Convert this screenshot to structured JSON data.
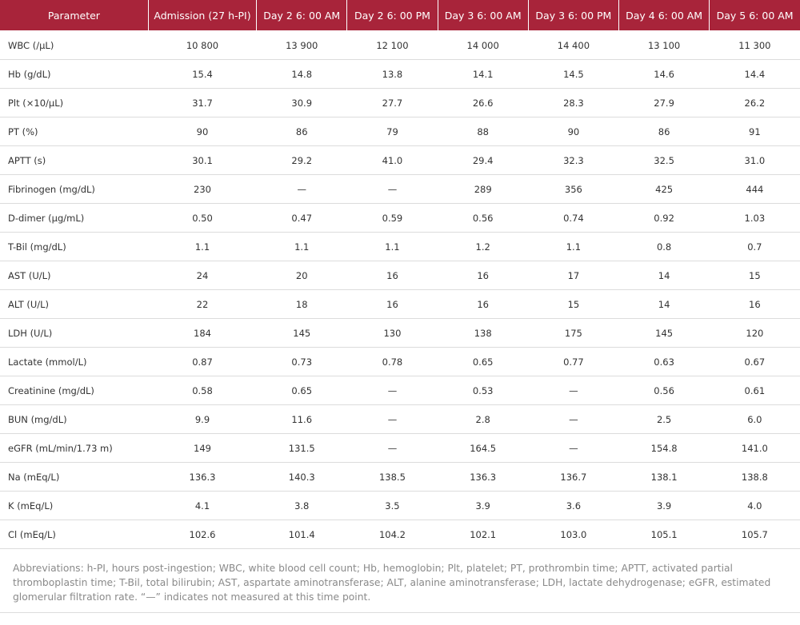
{
  "table": {
    "headers": [
      "Parameter",
      "Admission (27 h-PI)",
      "Day 2 6: 00 AM",
      "Day 2 6: 00 PM",
      "Day 3 6: 00 AM",
      "Day 3 6: 00 PM",
      "Day 4 6: 00 AM",
      "Day 5 6: 00 AM"
    ],
    "rows": [
      [
        "WBC (/µL)",
        "10 800",
        "13 900",
        "12 100",
        "14 000",
        "14 400",
        "13 100",
        "11 300"
      ],
      [
        "Hb (g/dL)",
        "15.4",
        "14.8",
        "13.8",
        "14.1",
        "14.5",
        "14.6",
        "14.4"
      ],
      [
        "Plt (×10/µL)",
        "31.7",
        "30.9",
        "27.7",
        "26.6",
        "28.3",
        "27.9",
        "26.2"
      ],
      [
        "PT (%)",
        "90",
        "86",
        "79",
        "88",
        "90",
        "86",
        "91"
      ],
      [
        "APTT (s)",
        "30.1",
        "29.2",
        "41.0",
        "29.4",
        "32.3",
        "32.5",
        "31.0"
      ],
      [
        "Fibrinogen (mg/dL)",
        "230",
        "—",
        "—",
        "289",
        "356",
        "425",
        "444"
      ],
      [
        "D-dimer (µg/mL)",
        "0.50",
        "0.47",
        "0.59",
        "0.56",
        "0.74",
        "0.92",
        "1.03"
      ],
      [
        "T-Bil (mg/dL)",
        "1.1",
        "1.1",
        "1.1",
        "1.2",
        "1.1",
        "0.8",
        "0.7"
      ],
      [
        "AST (U/L)",
        "24",
        "20",
        "16",
        "16",
        "17",
        "14",
        "15"
      ],
      [
        "ALT (U/L)",
        "22",
        "18",
        "16",
        "16",
        "15",
        "14",
        "16"
      ],
      [
        "LDH (U/L)",
        "184",
        "145",
        "130",
        "138",
        "175",
        "145",
        "120"
      ],
      [
        "Lactate (mmol/L)",
        "0.87",
        "0.73",
        "0.78",
        "0.65",
        "0.77",
        "0.63",
        "0.67"
      ],
      [
        "Creatinine (mg/dL)",
        "0.58",
        "0.65",
        "—",
        "0.53",
        "—",
        "0.56",
        "0.61"
      ],
      [
        "BUN (mg/dL)",
        "9.9",
        "11.6",
        "—",
        "2.8",
        "—",
        "2.5",
        "6.0"
      ],
      [
        "eGFR (mL/min/1.73 m)",
        "149",
        "131.5",
        "—",
        "164.5",
        "—",
        "154.8",
        "141.0"
      ],
      [
        "Na (mEq/L)",
        "136.3",
        "140.3",
        "138.5",
        "136.3",
        "136.7",
        "138.1",
        "138.8"
      ],
      [
        "K (mEq/L)",
        "4.1",
        "3.8",
        "3.5",
        "3.9",
        "3.6",
        "3.9",
        "4.0"
      ],
      [
        "Cl (mEq/L)",
        "102.6",
        "101.4",
        "104.2",
        "102.1",
        "103.0",
        "105.1",
        "105.7"
      ]
    ]
  },
  "footnote": "Abbreviations: h-PI, hours post-ingestion; WBC, white blood cell count; Hb, hemoglobin; Plt, platelet; PT, prothrombin time; APTT, activated partial thromboplastin time; T-Bil, total bilirubin; AST, aspartate aminotransferase; ALT, alanine aminotransferase; LDH, lactate dehydrogenase; eGFR, estimated glomerular filtration rate. “—” indicates not measured at this time point.",
  "colors": {
    "header_background": "#a8243a",
    "header_text": "#ffffff",
    "footnote_text": "#8a8a8a"
  }
}
